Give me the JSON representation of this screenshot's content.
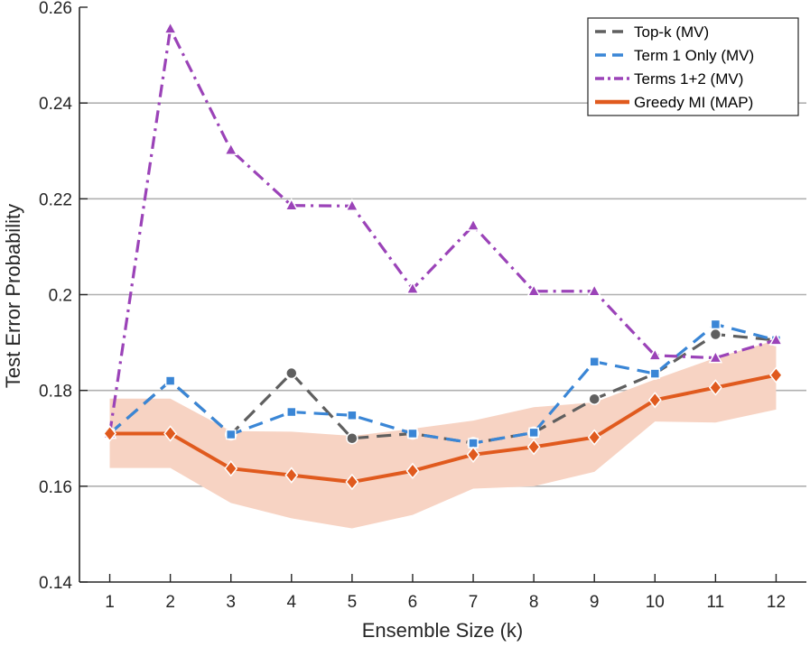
{
  "chart_data": {
    "type": "line",
    "title": "",
    "xlabel": "Ensemble Size (k)",
    "ylabel": "Test Error Probability",
    "x": [
      1,
      2,
      3,
      4,
      5,
      6,
      7,
      8,
      9,
      10,
      11,
      12
    ],
    "xlim": [
      0.5,
      12.5
    ],
    "ylim": [
      0.14,
      0.26
    ],
    "xticks": [
      "1",
      "2",
      "3",
      "4",
      "5",
      "6",
      "7",
      "8",
      "9",
      "10",
      "11",
      "12"
    ],
    "yticks": [
      0.14,
      0.16,
      0.18,
      0.2,
      0.22,
      0.24,
      0.26
    ],
    "ytick_labels": [
      "0.14",
      "0.16",
      "0.18",
      "0.2",
      "0.22",
      "0.24",
      "0.26"
    ],
    "grid": "horizontal",
    "legend_position": "top-right",
    "series": [
      {
        "name": "Top-k (MV)",
        "color": "#5f5f5f",
        "line_style": "dashed",
        "marker": "circle",
        "values": [
          0.171,
          0.182,
          0.1708,
          0.1836,
          0.17,
          0.171,
          0.169,
          0.1712,
          0.1782,
          0.1835,
          0.1917,
          0.1905
        ]
      },
      {
        "name": "Term 1 Only (MV)",
        "color": "#3a86d6",
        "line_style": "dashed",
        "marker": "square",
        "values": [
          0.171,
          0.182,
          0.1708,
          0.1755,
          0.1748,
          0.171,
          0.169,
          0.1712,
          0.186,
          0.1835,
          0.1938,
          0.1905
        ]
      },
      {
        "name": "Terms 1+2 (MV)",
        "color": "#9b43b8",
        "line_style": "dashdot",
        "marker": "triangle",
        "values": [
          0.171,
          0.2555,
          0.2302,
          0.2186,
          0.2185,
          0.2012,
          0.2144,
          0.2007,
          0.2007,
          0.1873,
          0.1868,
          0.1905
        ]
      },
      {
        "name": "Greedy MI (MAP)",
        "color": "#e05a1e",
        "line_style": "solid",
        "marker": "diamond",
        "values": [
          0.171,
          0.171,
          0.1637,
          0.1623,
          0.1609,
          0.1632,
          0.1666,
          0.1682,
          0.1702,
          0.178,
          0.1806,
          0.1832
        ],
        "band_color": "#f7d3c3",
        "band_lower": [
          0.1638,
          0.1638,
          0.1565,
          0.1533,
          0.1512,
          0.154,
          0.1595,
          0.16,
          0.163,
          0.1735,
          0.1733,
          0.176
        ],
        "band_upper": [
          0.1783,
          0.1783,
          0.1715,
          0.1714,
          0.1705,
          0.172,
          0.1737,
          0.1765,
          0.1775,
          0.1823,
          0.1868,
          0.1905
        ]
      }
    ]
  }
}
